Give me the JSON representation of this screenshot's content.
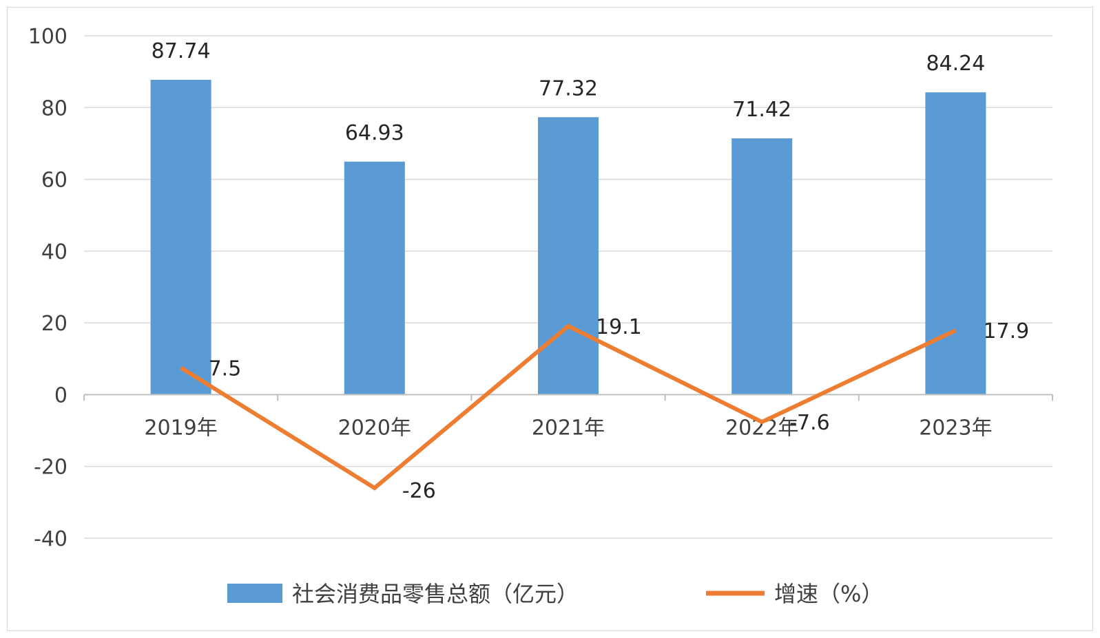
{
  "chart_data": {
    "type": "bar",
    "categories": [
      "2019年",
      "2020年",
      "2021年",
      "2022年",
      "2023年"
    ],
    "series": [
      {
        "name": "社会消费品零售总额（亿元）",
        "type": "bar",
        "values": [
          87.74,
          64.93,
          77.32,
          71.42,
          84.24
        ],
        "labels": [
          "87.74",
          "64.93",
          "77.32",
          "71.42",
          "84.24"
        ],
        "color": "#5b9bd5"
      },
      {
        "name": "增速（%）",
        "type": "line",
        "values": [
          7.5,
          -26,
          19.1,
          -7.6,
          17.9
        ],
        "labels": [
          "7.5",
          "-26",
          "19.1",
          "-7.6",
          "17.9"
        ],
        "color": "#ed7d31"
      }
    ],
    "y_ticks": [
      "100",
      "80",
      "60",
      "40",
      "20",
      "0",
      "-20",
      "-40"
    ],
    "ylim": [
      -40,
      100
    ],
    "grid": true,
    "legend_position": "bottom",
    "title": "",
    "xlabel": "",
    "ylabel": ""
  }
}
